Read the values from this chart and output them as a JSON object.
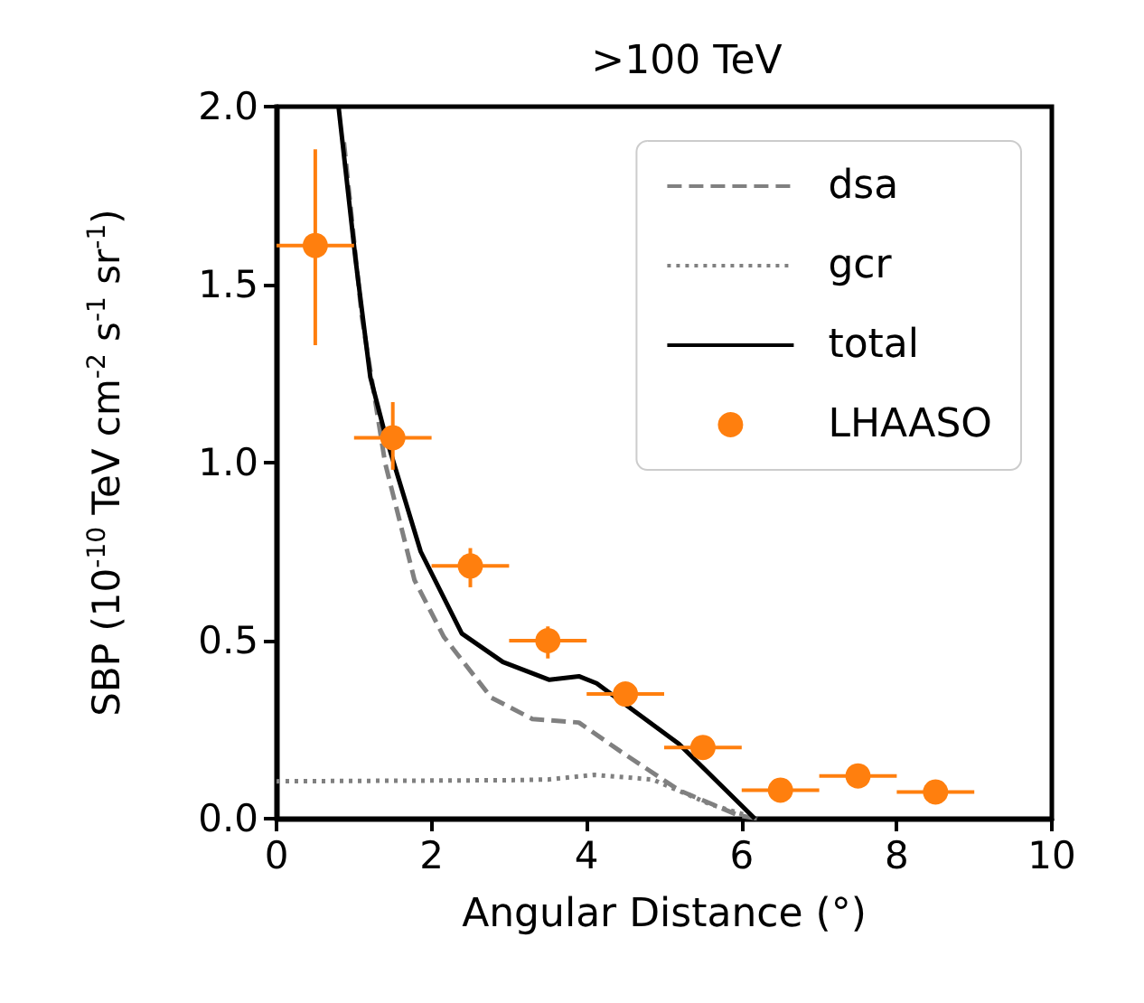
{
  "chart_data": {
    "type": "line",
    "title": ">100 TeV",
    "xlabel": "Angular Distance (°)",
    "ylabel": "SBP (10$^{-10}$ TeV cm$^{-2}$ s$^{-1}$ sr$^{-1}$)",
    "xlim": [
      0,
      10
    ],
    "xticks": [
      0,
      2,
      4,
      6,
      8,
      10
    ],
    "ylim": [
      0,
      2.0
    ],
    "yticks": [
      {
        "value": 0,
        "label": "0.0"
      },
      {
        "value": 0.5,
        "label": "0.5"
      },
      {
        "value": 1,
        "label": "1.0"
      },
      {
        "value": 1.5,
        "label": "1.5"
      },
      {
        "value": 2,
        "label": "2.0"
      }
    ],
    "grid": false,
    "legend": "top right",
    "series": [
      {
        "name": "dsa",
        "type": "line",
        "line_style": "dashed",
        "marker": "none",
        "color": "#808080",
        "x": [
          0.87,
          1.1,
          1.4,
          1.78,
          2.16,
          2.77,
          3.3,
          3.9,
          4.43,
          5.19,
          5.95,
          6.2
        ],
        "values": [
          1.9,
          1.41,
          1.0,
          0.67,
          0.51,
          0.34,
          0.28,
          0.27,
          0.19,
          0.08,
          0.01,
          0
        ]
      },
      {
        "name": "gcr",
        "type": "line",
        "line_style": "dotted",
        "marker": "none",
        "color": "#808080",
        "x": [
          0,
          1,
          2,
          3,
          3.5,
          4.1,
          4.85,
          5.6,
          6.2
        ],
        "values": [
          0.105,
          0.106,
          0.107,
          0.108,
          0.11,
          0.123,
          0.11,
          0.04,
          0
        ]
      },
      {
        "name": "total",
        "type": "line",
        "line_style": "solid",
        "marker": "none",
        "color": "#000000",
        "x": [
          0.8,
          1.02,
          1.21,
          1.4,
          1.86,
          2.39,
          2.92,
          3.52,
          3.9,
          4.13,
          5.19,
          6.17
        ],
        "values": [
          2.0,
          1.57,
          1.24,
          1.08,
          0.75,
          0.52,
          0.44,
          0.39,
          0.4,
          0.38,
          0.21,
          0
        ]
      },
      {
        "name": "LHAASO",
        "type": "scatter",
        "marker": "circle",
        "color": "#ff7f0e",
        "x": [
          0.5,
          1.5,
          2.5,
          3.5,
          4.5,
          5.5,
          6.5,
          7.5,
          8.5
        ],
        "values": [
          1.61,
          1.07,
          0.71,
          0.5,
          0.35,
          0.2,
          0.08,
          0.12,
          0.075
        ],
        "errors": [
          [
            1.33,
            1.88
          ],
          [
            0.98,
            1.17
          ],
          [
            0.65,
            0.76
          ],
          [
            0.45,
            0.54
          ],
          null,
          null,
          null,
          null,
          null
        ],
        "xerrors": [
          0.5,
          0.5,
          0.5,
          0.5,
          0.5,
          0.5,
          0.5,
          0.5,
          0.5
        ]
      }
    ]
  }
}
